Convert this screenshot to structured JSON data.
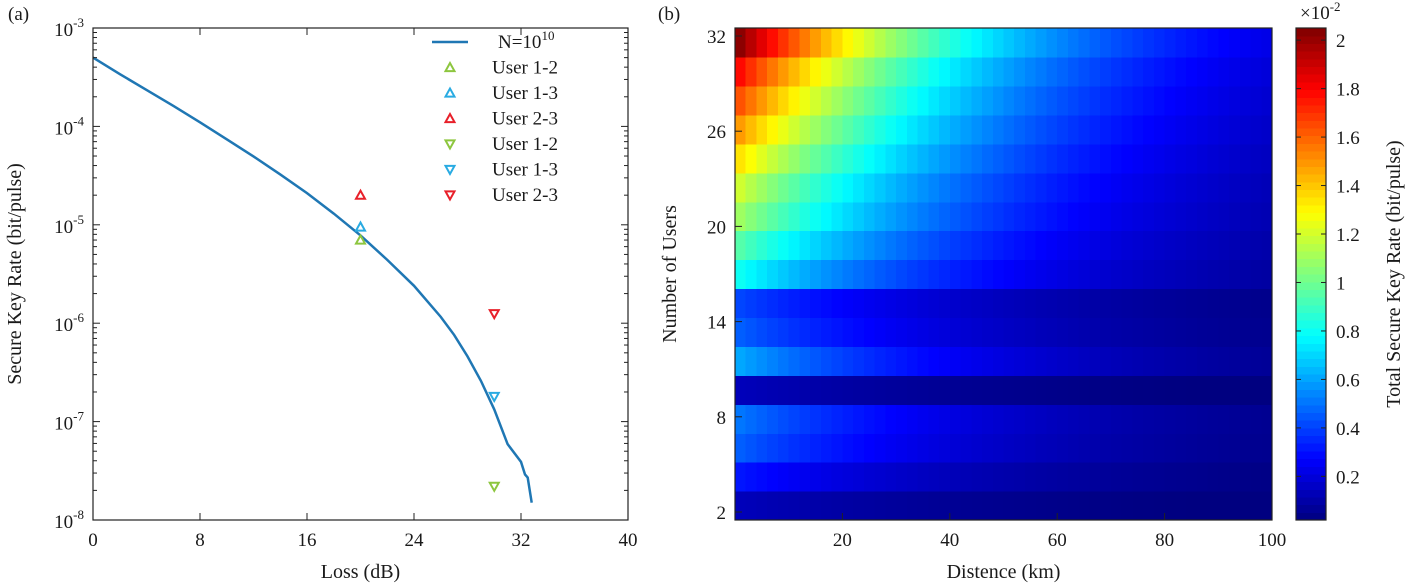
{
  "chart_data": [
    {
      "type": "line",
      "panel_label": "(a)",
      "xlabel": "Loss (dB)",
      "ylabel": "Secure Key Rate (bit/pulse)",
      "xlim": [
        0,
        40
      ],
      "ylim": [
        1e-08,
        0.001
      ],
      "yscale": "log",
      "xticks": [
        "0",
        "8",
        "16",
        "24",
        "32",
        "40"
      ],
      "ytick_exponents": [
        "-8",
        "-7",
        "-6",
        "-5",
        "-4",
        "-3"
      ],
      "ytick_base": "10",
      "grid": false,
      "legend_position": "top-right",
      "series": [
        {
          "name": "N=10",
          "name_sup": "10",
          "kind": "line",
          "color": "#1f77b4",
          "x": [
            0,
            2,
            4,
            6,
            8,
            10,
            12,
            14,
            16,
            18,
            20,
            22,
            24,
            26,
            27,
            28,
            29,
            30,
            31,
            32,
            32.3,
            32.5,
            32.8
          ],
          "y": [
            0.0005,
            0.00034,
            0.000235,
            0.000162,
            0.00011,
            7.4e-05,
            4.95e-05,
            3.25e-05,
            2.1e-05,
            1.3e-05,
            7.8e-06,
            4.4e-06,
            2.4e-06,
            1.16e-06,
            7.6e-07,
            4.6e-07,
            2.6e-07,
            1.33e-07,
            5.9e-08,
            3.9e-08,
            2.9e-08,
            2.7e-08,
            1.5e-08
          ]
        },
        {
          "name": "User 1-2",
          "kind": "marker",
          "marker": "triangle-up",
          "color": "#8dc63f",
          "x": [
            20
          ],
          "y": [
            7e-06
          ]
        },
        {
          "name": "User 1-3",
          "kind": "marker",
          "marker": "triangle-up",
          "color": "#29abe2",
          "x": [
            20
          ],
          "y": [
            9.5e-06
          ]
        },
        {
          "name": "User 2-3",
          "kind": "marker",
          "marker": "triangle-up",
          "color": "#e8202a",
          "x": [
            20
          ],
          "y": [
            2e-05
          ]
        },
        {
          "name": "User 1-2",
          "kind": "marker",
          "marker": "triangle-down",
          "color": "#8dc63f",
          "x": [
            30
          ],
          "y": [
            2.2e-08
          ]
        },
        {
          "name": "User 1-3",
          "kind": "marker",
          "marker": "triangle-down",
          "color": "#29abe2",
          "x": [
            30
          ],
          "y": [
            1.8e-07
          ]
        },
        {
          "name": "User 2-3",
          "kind": "marker",
          "marker": "triangle-down",
          "color": "#e8202a",
          "x": [
            30
          ],
          "y": [
            1.25e-06
          ]
        }
      ]
    },
    {
      "type": "heatmap",
      "panel_label": "(b)",
      "xlabel": "Distence (km)",
      "ylabel": "Number of Users",
      "colorbar_label": "Total Secure Key Rate (bit/pulse)",
      "colorbar_exponent": "×10",
      "colorbar_exponent_sup": "-2",
      "xlim": [
        0,
        100
      ],
      "ylim": [
        2,
        32
      ],
      "clim": [
        0.02,
        2.05
      ],
      "colormap": "jet",
      "xticks": [
        "20",
        "40",
        "60",
        "80",
        "100"
      ],
      "yticks": [
        "2",
        "8",
        "14",
        "20",
        "26",
        "32"
      ],
      "colorbar_ticks": [
        "0.2",
        "0.4",
        "0.6",
        "0.8",
        "1",
        "1.2",
        "1.4",
        "1.6",
        "1.8",
        "2"
      ],
      "users": [
        2,
        4,
        6,
        8,
        9,
        10,
        12,
        14,
        16,
        18,
        20,
        22,
        24,
        26,
        28,
        30,
        32
      ],
      "rate_at_origin": [
        0.12,
        0.3,
        0.45,
        0.5,
        0.12,
        0.6,
        0.45,
        0.4,
        0.8,
        0.95,
        1.1,
        1.2,
        1.35,
        1.5,
        1.65,
        1.8,
        2.05
      ],
      "decay_length_km": 45,
      "distance_step_km": 2
    }
  ]
}
